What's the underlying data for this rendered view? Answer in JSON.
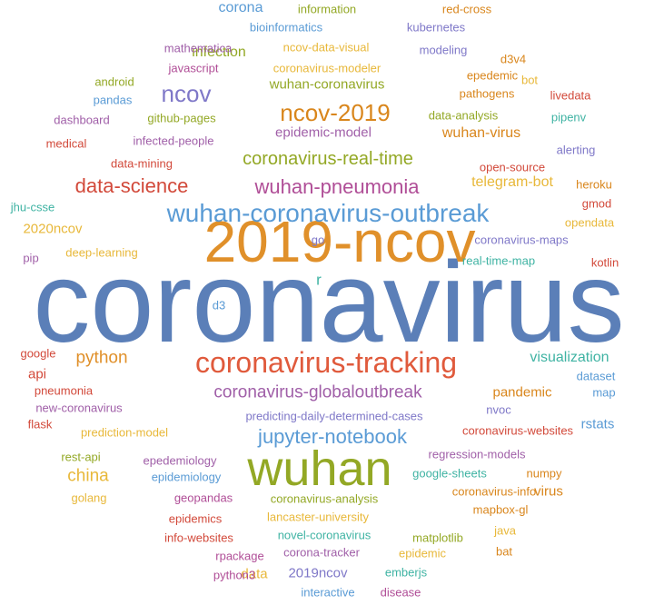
{
  "palette": {
    "blue": "#5b7fb8",
    "orange": "#e0902a",
    "olive": "#93a825",
    "red": "#e05a3c",
    "purple": "#a05fa8",
    "teal": "#3fb3a3",
    "lightblue": "#5a9bd5",
    "gold": "#e8b83a",
    "violet": "#7f78c8",
    "darkorange": "#d9861c",
    "magenta": "#b04e97",
    "crimson": "#d2493a"
  },
  "words": [
    {
      "text": "coronavirus",
      "weight": 100,
      "color": "blue"
    },
    {
      "text": "2019-ncov",
      "weight": 46,
      "color": "orange"
    },
    {
      "text": "wuhan",
      "weight": 37,
      "color": "olive"
    },
    {
      "text": "coronavirus-tracking",
      "weight": 26,
      "color": "red"
    },
    {
      "text": "wuhan-coronavirus-outbreak",
      "weight": 21,
      "color": "lightblue"
    },
    {
      "text": "ncov",
      "weight": 21,
      "color": "violet"
    },
    {
      "text": "ncov-2019",
      "weight": 20,
      "color": "darkorange"
    },
    {
      "text": "data-science",
      "weight": 18,
      "color": "crimson"
    },
    {
      "text": "wuhan-pneumonia",
      "weight": 18,
      "color": "magenta"
    },
    {
      "text": "jupyter-notebook",
      "weight": 18,
      "color": "lightblue"
    },
    {
      "text": "coronavirus-real-time",
      "weight": 16,
      "color": "olive"
    },
    {
      "text": "coronavirus-globaloutbreak",
      "weight": 16,
      "color": "purple"
    },
    {
      "text": "python",
      "weight": 16,
      "color": "orange"
    },
    {
      "text": "china",
      "weight": 16,
      "color": "gold"
    },
    {
      "text": "wuhan-virus",
      "weight": 14,
      "color": "darkorange"
    },
    {
      "text": "infection",
      "weight": 13,
      "color": "olive"
    },
    {
      "text": "corona",
      "weight": 13,
      "color": "lightblue"
    },
    {
      "text": "visualization",
      "weight": 13,
      "color": "teal"
    },
    {
      "text": "telegram-bot",
      "weight": 13,
      "color": "gold"
    },
    {
      "text": "epidemic-model",
      "weight": 12,
      "color": "purple"
    },
    {
      "text": "wuhan-coronavirus",
      "weight": 12,
      "color": "olive"
    },
    {
      "text": "2020ncov",
      "weight": 12,
      "color": "gold"
    },
    {
      "text": "pandemic",
      "weight": 12,
      "color": "darkorange"
    },
    {
      "text": "rstats",
      "weight": 12,
      "color": "lightblue"
    },
    {
      "text": "virus",
      "weight": 12,
      "color": "darkorange"
    },
    {
      "text": "data",
      "weight": 12,
      "color": "gold"
    },
    {
      "text": "2019ncov",
      "weight": 12,
      "color": "violet"
    },
    {
      "text": "api",
      "weight": 12,
      "color": "crimson"
    },
    {
      "text": "r",
      "weight": 14,
      "color": "teal"
    },
    {
      "text": "information",
      "weight": 10,
      "color": "olive"
    },
    {
      "text": "red-cross",
      "weight": 10,
      "color": "darkorange"
    },
    {
      "text": "bioinformatics",
      "weight": 10,
      "color": "lightblue"
    },
    {
      "text": "kubernetes",
      "weight": 10,
      "color": "violet"
    },
    {
      "text": "mathematica",
      "weight": 10,
      "color": "purple"
    },
    {
      "text": "ncov-data-visual",
      "weight": 10,
      "color": "gold"
    },
    {
      "text": "modeling",
      "weight": 10,
      "color": "violet"
    },
    {
      "text": "d3v4",
      "weight": 10,
      "color": "darkorange"
    },
    {
      "text": "javascript",
      "weight": 10,
      "color": "magenta"
    },
    {
      "text": "coronavirus-modeler",
      "weight": 10,
      "color": "gold"
    },
    {
      "text": "epedemic",
      "weight": 10,
      "color": "darkorange"
    },
    {
      "text": "bot",
      "weight": 10,
      "color": "gold"
    },
    {
      "text": "android",
      "weight": 10,
      "color": "olive"
    },
    {
      "text": "pandas",
      "weight": 10,
      "color": "lightblue"
    },
    {
      "text": "pathogens",
      "weight": 10,
      "color": "darkorange"
    },
    {
      "text": "livedata",
      "weight": 10,
      "color": "crimson"
    },
    {
      "text": "dashboard",
      "weight": 10,
      "color": "purple"
    },
    {
      "text": "github-pages",
      "weight": 10,
      "color": "olive"
    },
    {
      "text": "data-analysis",
      "weight": 10,
      "color": "olive"
    },
    {
      "text": "pipenv",
      "weight": 10,
      "color": "teal"
    },
    {
      "text": "medical",
      "weight": 10,
      "color": "crimson"
    },
    {
      "text": "infected-people",
      "weight": 10,
      "color": "purple"
    },
    {
      "text": "alerting",
      "weight": 10,
      "color": "violet"
    },
    {
      "text": "data-mining",
      "weight": 10,
      "color": "crimson"
    },
    {
      "text": "open-source",
      "weight": 10,
      "color": "crimson"
    },
    {
      "text": "heroku",
      "weight": 10,
      "color": "darkorange"
    },
    {
      "text": "gmod",
      "weight": 10,
      "color": "crimson"
    },
    {
      "text": "jhu-csse",
      "weight": 10,
      "color": "teal"
    },
    {
      "text": "opendata",
      "weight": 10,
      "color": "gold"
    },
    {
      "text": "go",
      "weight": 10,
      "color": "violet"
    },
    {
      "text": "coronavirus-maps",
      "weight": 10,
      "color": "violet"
    },
    {
      "text": "deep-learning",
      "weight": 10,
      "color": "gold"
    },
    {
      "text": "pip",
      "weight": 10,
      "color": "purple"
    },
    {
      "text": "real-time-map",
      "weight": 10,
      "color": "teal"
    },
    {
      "text": "kotlin",
      "weight": 10,
      "color": "crimson"
    },
    {
      "text": "d3",
      "weight": 10,
      "color": "lightblue"
    },
    {
      "text": "google",
      "weight": 10,
      "color": "crimson"
    },
    {
      "text": "pneumonia",
      "weight": 10,
      "color": "crimson"
    },
    {
      "text": "dataset",
      "weight": 10,
      "color": "lightblue"
    },
    {
      "text": "map",
      "weight": 10,
      "color": "lightblue"
    },
    {
      "text": "new-coronavirus",
      "weight": 10,
      "color": "purple"
    },
    {
      "text": "predicting-daily-determined-cases",
      "weight": 10,
      "color": "violet"
    },
    {
      "text": "nvoc",
      "weight": 10,
      "color": "violet"
    },
    {
      "text": "flask",
      "weight": 10,
      "color": "crimson"
    },
    {
      "text": "prediction-model",
      "weight": 10,
      "color": "gold"
    },
    {
      "text": "coronavirus-websites",
      "weight": 10,
      "color": "crimson"
    },
    {
      "text": "rest-api",
      "weight": 10,
      "color": "olive"
    },
    {
      "text": "regression-models",
      "weight": 10,
      "color": "purple"
    },
    {
      "text": "epedemiology",
      "weight": 10,
      "color": "purple"
    },
    {
      "text": "epidemiology",
      "weight": 10,
      "color": "lightblue"
    },
    {
      "text": "google-sheets",
      "weight": 10,
      "color": "teal"
    },
    {
      "text": "numpy",
      "weight": 10,
      "color": "darkorange"
    },
    {
      "text": "golang",
      "weight": 10,
      "color": "gold"
    },
    {
      "text": "geopandas",
      "weight": 10,
      "color": "magenta"
    },
    {
      "text": "coronavirus-info",
      "weight": 10,
      "color": "darkorange"
    },
    {
      "text": "coronavirus-analysis",
      "weight": 10,
      "color": "olive"
    },
    {
      "text": "mapbox-gl",
      "weight": 10,
      "color": "darkorange"
    },
    {
      "text": "epidemics",
      "weight": 10,
      "color": "crimson"
    },
    {
      "text": "lancaster-university",
      "weight": 10,
      "color": "gold"
    },
    {
      "text": "info-websites",
      "weight": 10,
      "color": "crimson"
    },
    {
      "text": "novel-coronavirus",
      "weight": 10,
      "color": "teal"
    },
    {
      "text": "matplotlib",
      "weight": 10,
      "color": "olive"
    },
    {
      "text": "java",
      "weight": 10,
      "color": "gold"
    },
    {
      "text": "rpackage",
      "weight": 10,
      "color": "magenta"
    },
    {
      "text": "corona-tracker",
      "weight": 10,
      "color": "purple"
    },
    {
      "text": "epidemic",
      "weight": 10,
      "color": "gold"
    },
    {
      "text": "bat",
      "weight": 10,
      "color": "darkorange"
    },
    {
      "text": "python3",
      "weight": 10,
      "color": "magenta"
    },
    {
      "text": "emberjs",
      "weight": 10,
      "color": "teal"
    },
    {
      "text": "interactive",
      "weight": 10,
      "color": "lightblue"
    },
    {
      "text": "disease",
      "weight": 10,
      "color": "magenta"
    }
  ]
}
